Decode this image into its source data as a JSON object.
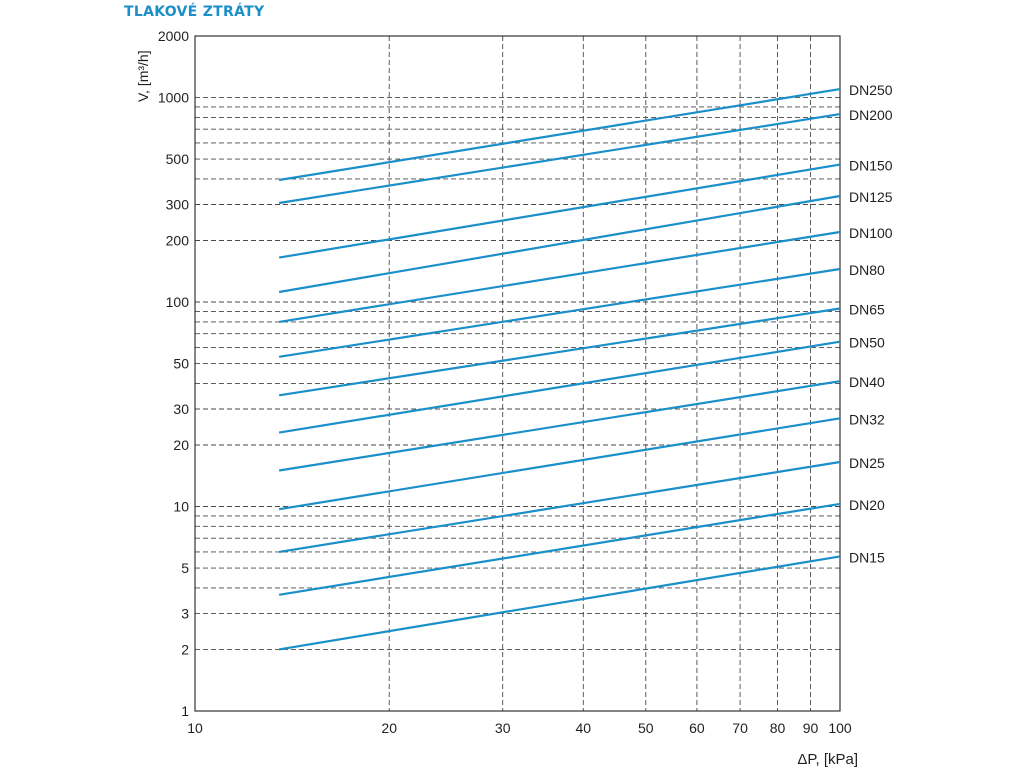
{
  "title": "TLAKOVÉ ZTRÁTY",
  "chart_data": {
    "type": "line",
    "title": "TLAKOVÉ ZTRÁTY",
    "xlabel": "ΔP, [kPa]",
    "ylabel": "V, [m³/h]",
    "x_scale": "log",
    "y_scale": "log",
    "xlim": [
      10,
      100
    ],
    "ylim": [
      1,
      2000
    ],
    "grid": true,
    "x_ticks": [
      10,
      20,
      30,
      40,
      50,
      60,
      70,
      80,
      90,
      100
    ],
    "y_ticks": [
      1,
      2,
      3,
      5,
      10,
      20,
      30,
      50,
      100,
      200,
      300,
      500,
      1000,
      2000
    ],
    "x_grid": [
      20,
      30,
      40,
      50,
      60,
      70,
      80,
      90
    ],
    "y_grid": [
      2,
      3,
      4,
      5,
      6,
      7,
      8,
      9,
      10,
      20,
      30,
      40,
      50,
      60,
      70,
      80,
      90,
      100,
      200,
      300,
      400,
      500,
      600,
      700,
      800,
      900,
      1000
    ],
    "label_position": "right",
    "line_color": "#1a8fc9",
    "series": [
      {
        "name": "DN250",
        "x": [
          13.5,
          100
        ],
        "y": [
          395,
          1100
        ]
      },
      {
        "name": "DN200",
        "x": [
          13.5,
          100
        ],
        "y": [
          305,
          830
        ]
      },
      {
        "name": "DN150",
        "x": [
          13.5,
          100
        ],
        "y": [
          165,
          470
        ]
      },
      {
        "name": "DN125",
        "x": [
          13.5,
          100
        ],
        "y": [
          112,
          330
        ]
      },
      {
        "name": "DN100",
        "x": [
          13.5,
          100
        ],
        "y": [
          80,
          220
        ]
      },
      {
        "name": "DN80",
        "x": [
          13.5,
          100
        ],
        "y": [
          54,
          145
        ]
      },
      {
        "name": "DN65",
        "x": [
          13.5,
          100
        ],
        "y": [
          35,
          93
        ]
      },
      {
        "name": "DN50",
        "x": [
          13.5,
          100
        ],
        "y": [
          23,
          64
        ]
      },
      {
        "name": "DN40",
        "x": [
          13.5,
          100
        ],
        "y": [
          15,
          41
        ]
      },
      {
        "name": "DN32",
        "x": [
          13.5,
          100
        ],
        "y": [
          9.7,
          27
        ]
      },
      {
        "name": "DN25",
        "x": [
          13.5,
          100
        ],
        "y": [
          6,
          16.5
        ]
      },
      {
        "name": "DN20",
        "x": [
          13.5,
          100
        ],
        "y": [
          3.7,
          10.3
        ]
      },
      {
        "name": "DN15",
        "x": [
          13.5,
          100
        ],
        "y": [
          2,
          5.7
        ]
      }
    ]
  }
}
